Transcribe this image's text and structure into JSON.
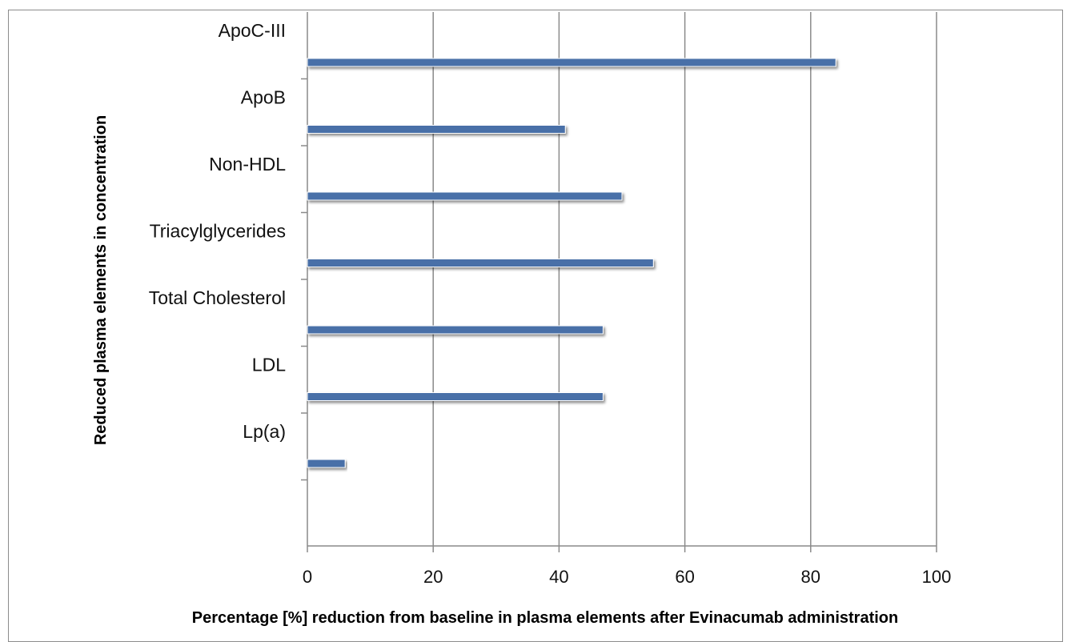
{
  "chart_data": {
    "type": "bar",
    "orientation": "horizontal",
    "categories": [
      "ApoC-III",
      "ApoB",
      "Non-HDL",
      "Triacylglycerides",
      "Total Cholesterol",
      "LDL",
      "Lp(a)"
    ],
    "values": [
      84,
      41,
      50,
      55,
      47,
      47,
      6
    ],
    "title": "",
    "xlabel": "Percentage [%] reduction from baseline in plasma elements after Evinacumab administration",
    "ylabel": "Reduced plasma elements  in concentration",
    "xlim": [
      0,
      100
    ],
    "xticks": [
      "0",
      "20",
      "40",
      "60",
      "80",
      "100"
    ],
    "grid": true,
    "legend": "none",
    "bar_color": "#4a6fa8"
  }
}
